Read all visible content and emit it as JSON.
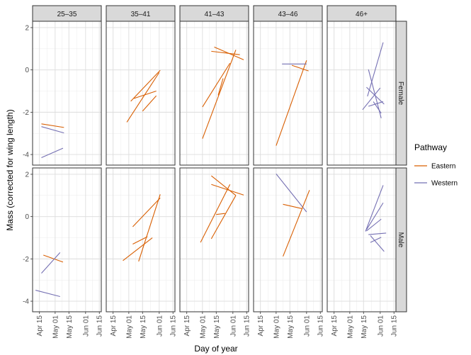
{
  "chart_data": {
    "type": "line",
    "xlabel": "Day of year",
    "ylabel": "Mass (corrected for wing length)",
    "x_ticks": [
      "Apr 15",
      "May 01",
      "May 15",
      "Jun 01",
      "Jun 15"
    ],
    "xlim": [
      "2000-04-08",
      "2000-06-17"
    ],
    "y_ticks": [
      -4,
      -2,
      0,
      2
    ],
    "ylim": [
      -4.5,
      2.3
    ],
    "grid": true,
    "columns": [
      "25-35",
      "35-41",
      "41-43",
      "43-46",
      "46+"
    ],
    "rows": [
      "Female",
      "Male"
    ],
    "legend": {
      "title": "Pathway",
      "placement": "right",
      "entries": [
        {
          "name": "Eastern",
          "color": "#d95f02"
        },
        {
          "name": "Western",
          "color": "#7570b3"
        }
      ]
    },
    "segments": [
      {
        "row": "Female",
        "col": "25-35",
        "pathway": "Eastern",
        "x": [
          "2000-04-17",
          "2000-05-10"
        ],
        "y": [
          -2.55,
          -2.72
        ]
      },
      {
        "row": "Female",
        "col": "25-35",
        "pathway": "Western",
        "x": [
          "2000-04-17",
          "2000-05-10"
        ],
        "y": [
          -2.68,
          -2.98
        ]
      },
      {
        "row": "Female",
        "col": "25-35",
        "pathway": "Western",
        "x": [
          "2000-04-17",
          "2000-05-09"
        ],
        "y": [
          -4.15,
          -3.7
        ]
      },
      {
        "row": "Female",
        "col": "35-41",
        "pathway": "Eastern",
        "x": [
          "2000-05-03",
          "2000-06-02"
        ],
        "y": [
          -1.48,
          -0.02
        ]
      },
      {
        "row": "Female",
        "col": "35-41",
        "pathway": "Eastern",
        "x": [
          "2000-05-06",
          "2000-05-29"
        ],
        "y": [
          -1.35,
          -1.0
        ]
      },
      {
        "row": "Female",
        "col": "35-41",
        "pathway": "Eastern",
        "x": [
          "2000-04-29",
          "2000-06-01"
        ],
        "y": [
          -2.47,
          -0.12
        ]
      },
      {
        "row": "Female",
        "col": "35-41",
        "pathway": "Eastern",
        "x": [
          "2000-05-15",
          "2000-05-29"
        ],
        "y": [
          -1.95,
          -1.22
        ]
      },
      {
        "row": "Female",
        "col": "41-43",
        "pathway": "Eastern",
        "x": [
          "2000-05-01",
          "2000-05-29"
        ],
        "y": [
          -1.75,
          0.32
        ]
      },
      {
        "row": "Female",
        "col": "41-43",
        "pathway": "Eastern",
        "x": [
          "2000-05-01",
          "2000-06-04"
        ],
        "y": [
          -3.25,
          0.95
        ]
      },
      {
        "row": "Female",
        "col": "41-43",
        "pathway": "Eastern",
        "x": [
          "2000-05-13",
          "2000-06-12"
        ],
        "y": [
          1.08,
          0.48
        ]
      },
      {
        "row": "Female",
        "col": "41-43",
        "pathway": "Eastern",
        "x": [
          "2000-05-10",
          "2000-06-08"
        ],
        "y": [
          0.88,
          0.72
        ]
      },
      {
        "row": "Female",
        "col": "41-43",
        "pathway": "Eastern",
        "x": [
          "2000-05-17",
          "2000-05-22"
        ],
        "y": [
          -1.2,
          -0.4
        ]
      },
      {
        "row": "Female",
        "col": "43-46",
        "pathway": "Eastern",
        "x": [
          "2000-05-01",
          "2000-06-01"
        ],
        "y": [
          -3.58,
          0.45
        ]
      },
      {
        "row": "Female",
        "col": "43-46",
        "pathway": "Eastern",
        "x": [
          "2000-05-17",
          "2000-06-03"
        ],
        "y": [
          0.22,
          -0.05
        ]
      },
      {
        "row": "Female",
        "col": "43-46",
        "pathway": "Western",
        "x": [
          "2000-05-07",
          "2000-06-01"
        ],
        "y": [
          0.28,
          0.28
        ]
      },
      {
        "row": "Female",
        "col": "46+",
        "pathway": "Western",
        "x": [
          "2000-05-19",
          "2000-06-04"
        ],
        "y": [
          -1.25,
          1.3
        ]
      },
      {
        "row": "Female",
        "col": "46+",
        "pathway": "Western",
        "x": [
          "2000-05-14",
          "2000-06-01"
        ],
        "y": [
          -1.88,
          -0.85
        ]
      },
      {
        "row": "Female",
        "col": "46+",
        "pathway": "Western",
        "x": [
          "2000-05-20",
          "2000-06-02"
        ],
        "y": [
          0.02,
          -2.28
        ]
      },
      {
        "row": "Female",
        "col": "46+",
        "pathway": "Western",
        "x": [
          "2000-05-18",
          "2000-06-05"
        ],
        "y": [
          -0.82,
          -1.62
        ]
      },
      {
        "row": "Female",
        "col": "46+",
        "pathway": "Western",
        "x": [
          "2000-05-20",
          "2000-06-04"
        ],
        "y": [
          -1.72,
          -1.5
        ]
      },
      {
        "row": "Female",
        "col": "46+",
        "pathway": "Western",
        "x": [
          "2000-05-25",
          "2000-06-02"
        ],
        "y": [
          -1.5,
          -2.05
        ]
      },
      {
        "row": "Male",
        "col": "25-35",
        "pathway": "Eastern",
        "x": [
          "2000-04-19",
          "2000-05-09"
        ],
        "y": [
          -1.82,
          -2.15
        ]
      },
      {
        "row": "Male",
        "col": "25-35",
        "pathway": "Western",
        "x": [
          "2000-04-17",
          "2000-05-06"
        ],
        "y": [
          -2.68,
          -1.7
        ]
      },
      {
        "row": "Male",
        "col": "25-35",
        "pathway": "Western",
        "x": [
          "2000-04-11",
          "2000-05-06"
        ],
        "y": [
          -3.48,
          -3.78
        ]
      },
      {
        "row": "Male",
        "col": "35-41",
        "pathway": "Eastern",
        "x": [
          "2000-05-05",
          "2000-06-02"
        ],
        "y": [
          -0.48,
          0.88
        ]
      },
      {
        "row": "Male",
        "col": "35-41",
        "pathway": "Eastern",
        "x": [
          "2000-04-25",
          "2000-05-25"
        ],
        "y": [
          -2.08,
          -1.0
        ]
      },
      {
        "row": "Male",
        "col": "35-41",
        "pathway": "Eastern",
        "x": [
          "2000-05-05",
          "2000-05-20"
        ],
        "y": [
          -1.3,
          -0.95
        ]
      },
      {
        "row": "Male",
        "col": "35-41",
        "pathway": "Eastern",
        "x": [
          "2000-05-11",
          "2000-06-02"
        ],
        "y": [
          -2.12,
          1.05
        ]
      },
      {
        "row": "Male",
        "col": "41-43",
        "pathway": "Eastern",
        "x": [
          "2000-04-29",
          "2000-05-29"
        ],
        "y": [
          -1.22,
          1.52
        ]
      },
      {
        "row": "Male",
        "col": "41-43",
        "pathway": "Eastern",
        "x": [
          "2000-05-10",
          "2000-06-04"
        ],
        "y": [
          1.93,
          1.0
        ]
      },
      {
        "row": "Male",
        "col": "41-43",
        "pathway": "Eastern",
        "x": [
          "2000-05-10",
          "2000-06-12"
        ],
        "y": [
          1.52,
          1.02
        ]
      },
      {
        "row": "Male",
        "col": "41-43",
        "pathway": "Eastern",
        "x": [
          "2000-05-10",
          "2000-06-04"
        ],
        "y": [
          -1.05,
          1.0
        ]
      },
      {
        "row": "Male",
        "col": "41-43",
        "pathway": "Eastern",
        "x": [
          "2000-05-15",
          "2000-05-24"
        ],
        "y": [
          0.1,
          0.15
        ]
      },
      {
        "row": "Male",
        "col": "43-46",
        "pathway": "Western",
        "x": [
          "2000-05-01",
          "2000-06-01"
        ],
        "y": [
          2.02,
          0.22
        ]
      },
      {
        "row": "Male",
        "col": "43-46",
        "pathway": "Eastern",
        "x": [
          "2000-05-08",
          "2000-06-04"
        ],
        "y": [
          -1.88,
          1.25
        ]
      },
      {
        "row": "Male",
        "col": "43-46",
        "pathway": "Eastern",
        "x": [
          "2000-05-08",
          "2000-05-27"
        ],
        "y": [
          0.58,
          0.38
        ]
      },
      {
        "row": "Male",
        "col": "46+",
        "pathway": "Western",
        "x": [
          "2000-05-17",
          "2000-06-04"
        ],
        "y": [
          -0.7,
          1.48
        ]
      },
      {
        "row": "Male",
        "col": "46+",
        "pathway": "Western",
        "x": [
          "2000-05-18",
          "2000-06-04"
        ],
        "y": [
          -0.62,
          0.65
        ]
      },
      {
        "row": "Male",
        "col": "46+",
        "pathway": "Western",
        "x": [
          "2000-05-18",
          "2000-06-02"
        ],
        "y": [
          -0.68,
          -0.12
        ]
      },
      {
        "row": "Male",
        "col": "46+",
        "pathway": "Western",
        "x": [
          "2000-05-20",
          "2000-06-07"
        ],
        "y": [
          -0.85,
          -0.78
        ]
      },
      {
        "row": "Male",
        "col": "46+",
        "pathway": "Western",
        "x": [
          "2000-05-22",
          "2000-06-05"
        ],
        "y": [
          -0.9,
          -1.65
        ]
      },
      {
        "row": "Male",
        "col": "46+",
        "pathway": "Western",
        "x": [
          "2000-05-22",
          "2000-06-02"
        ],
        "y": [
          -1.22,
          -0.98
        ]
      }
    ]
  }
}
